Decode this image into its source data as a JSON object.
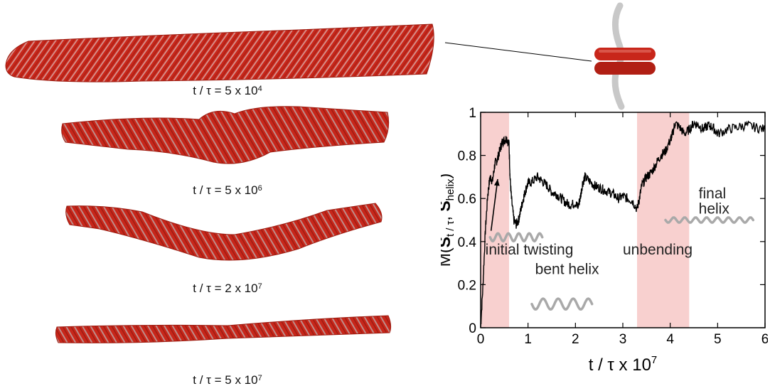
{
  "snapshots": [
    {
      "time_label": "t / τ = 5 x 10",
      "exponent": "4"
    },
    {
      "time_label": "t / τ = 5 x 10",
      "exponent": "6"
    },
    {
      "time_label": "t / τ = 2 x 10",
      "exponent": "7"
    },
    {
      "time_label": "t / τ = 5 x 10",
      "exponent": "7"
    }
  ],
  "colors": {
    "ribbon": "#c8261a",
    "ribbon_dark": "#8e1a10",
    "strand": "#c4c4c4",
    "shade": "#f8d0cf",
    "line": "#000000"
  },
  "chart_data": {
    "type": "line",
    "xlabel": "t / τ x 10",
    "xlabel_exp": "7",
    "ylabel_parts": [
      "M(",
      "S",
      "t / τ",
      ", ",
      "S",
      "helix",
      ")"
    ],
    "xlim": [
      0,
      6
    ],
    "ylim": [
      0,
      1
    ],
    "xticks": [
      "0",
      "1",
      "2",
      "3",
      "4",
      "5",
      "6"
    ],
    "yticks": [
      "0",
      "0.2",
      "0.4",
      "0.6",
      "0.8",
      "1"
    ],
    "shaded_ranges": [
      [
        0,
        0.6
      ],
      [
        3.3,
        4.4
      ]
    ],
    "series": [
      {
        "x": [
          0,
          0.05,
          0.1,
          0.15,
          0.2,
          0.25,
          0.3,
          0.35,
          0.4,
          0.45,
          0.5,
          0.55,
          0.6,
          0.62,
          0.65,
          0.7,
          0.75,
          0.8,
          0.85,
          0.9,
          0.95,
          1.0,
          1.1,
          1.2,
          1.3,
          1.4,
          1.5,
          1.6,
          1.7,
          1.8,
          1.9,
          2.0,
          2.05,
          2.1,
          2.15,
          2.2,
          2.3,
          2.4,
          2.5,
          2.6,
          2.7,
          2.8,
          2.9,
          3.0,
          3.1,
          3.2,
          3.3,
          3.35,
          3.4,
          3.5,
          3.6,
          3.7,
          3.8,
          3.9,
          4.0,
          4.05,
          4.1,
          4.2,
          4.3,
          4.4,
          4.5,
          4.6,
          4.7,
          4.8,
          4.9,
          5.0,
          5.2,
          5.4,
          5.6,
          5.8,
          6.0
        ],
        "y": [
          0.0,
          0.2,
          0.45,
          0.62,
          0.7,
          0.68,
          0.76,
          0.78,
          0.82,
          0.86,
          0.87,
          0.88,
          0.85,
          0.7,
          0.6,
          0.5,
          0.48,
          0.5,
          0.55,
          0.6,
          0.64,
          0.67,
          0.68,
          0.7,
          0.68,
          0.66,
          0.63,
          0.62,
          0.6,
          0.58,
          0.57,
          0.58,
          0.56,
          0.6,
          0.67,
          0.7,
          0.68,
          0.66,
          0.65,
          0.64,
          0.63,
          0.62,
          0.6,
          0.61,
          0.6,
          0.59,
          0.55,
          0.6,
          0.66,
          0.7,
          0.72,
          0.76,
          0.8,
          0.82,
          0.87,
          0.9,
          0.95,
          0.93,
          0.9,
          0.92,
          0.95,
          0.94,
          0.92,
          0.94,
          0.93,
          0.9,
          0.92,
          0.93,
          0.94,
          0.93,
          0.92
        ]
      }
    ],
    "annotations": [
      {
        "text": "initial twisting",
        "x": 0.1,
        "y": 0.34
      },
      {
        "text": "bent helix",
        "x": 1.15,
        "y": 0.25
      },
      {
        "text": "unbending",
        "x": 3.0,
        "y": 0.34
      },
      {
        "text": "final",
        "x": 4.6,
        "y": 0.6
      },
      {
        "text": "helix",
        "x": 4.6,
        "y": 0.53
      }
    ],
    "arrow": {
      "from": [
        0.22,
        0.45
      ],
      "to": [
        0.36,
        0.69
      ]
    },
    "squiggles": [
      {
        "x": [
          0.2,
          1.3
        ],
        "y": 0.42,
        "amp": 0.018,
        "waves": 5
      },
      {
        "x": [
          1.08,
          2.35
        ],
        "y": 0.11,
        "amp": 0.025,
        "waves": 4
      },
      {
        "x": [
          3.9,
          5.75
        ],
        "y": 0.5,
        "amp": 0.012,
        "waves": 8
      }
    ]
  }
}
